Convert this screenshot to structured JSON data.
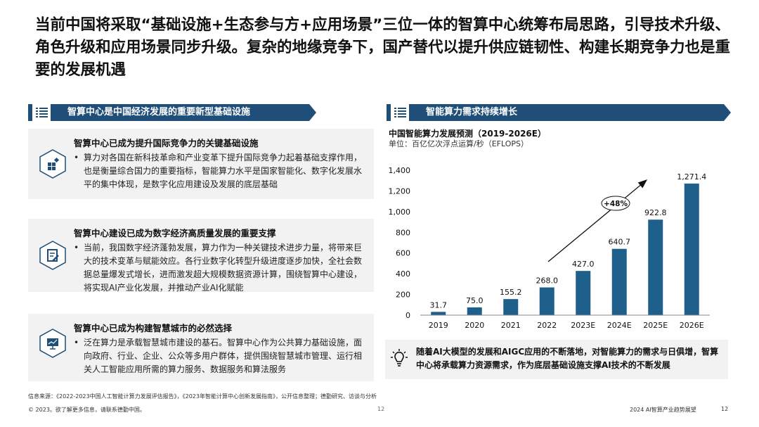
{
  "headline": "当前中国将采取“基础设施+生态参与方+应用场景”三位一体的智算中心统筹布局思路，引导技术升级、角色升级和应用场景同步升级。复杂的地缘竞争下，国产替代以提升供应链韧性、构建长期竞争力也是重要的发展机遇",
  "left_section": {
    "title": "智算中心是中国经济发展的重要新型基础设施",
    "cards": [
      {
        "icon": "grid-blocks-icon",
        "title": "智算中心已成为提升国际竞争力的关键基础设施",
        "bullet": "算力对各国在新科技革命和产业变革下提升国际竞争力起着基础支撑作用，也是衡量综合国力的重要指标，智能算力水平是国家智能化、数字化发展水平的集中体现，是数字化应用建设及发展的底层基础"
      },
      {
        "icon": "document-edit-icon",
        "title": "智算中心建设已成为数字经济高质量发展的重要支撑",
        "bullet": "当前，我国数字经济蓬勃发展，算力作为一种关键技术进步力量，将带来巨大的技术变革与赋能效应。各行业数字化转型升级进度逐步加快，全社会数据总量爆发式增长，进而激发超大规模数据资源计算，围绕智算中心建设，将实现AI产业化发展，并推动产业AI化赋能"
      },
      {
        "icon": "presentation-screen-icon",
        "title": "智算中心已成为构建智慧城市的必然选择",
        "bullet": "泛在算力是承载智慧城市建设的基石。智算中心作为公共算力基础设施，面向政府、行业、企业、公众等多用户群体，提供围绕智慧城市管理、运行相关人工智能应用所需的算力服务、数据服务和算法服务"
      }
    ]
  },
  "right_section": {
    "title": "智能算力需求持续增长",
    "chart_title": "中国智能算力发展预测（2019-2026E）",
    "chart_unit": "单位：百亿亿次浮点运算/秒（EFLOPS）",
    "insight": "随着AI大模型的发展和AIGC应用的不断落地，对智能算力的需求与日俱增，智算中心将承载算力资源需求，作为底层基础设施支撑AI技术的不断发展"
  },
  "chart_data": {
    "type": "bar",
    "title": "中国智能算力发展预测（2019-2026E）",
    "ylabel": "单位：百亿亿次浮点运算/秒（EFLOPS）",
    "categories": [
      "2019",
      "2020",
      "2021",
      "2022",
      "2023E",
      "2024E",
      "2025E",
      "2026E"
    ],
    "values": [
      31.7,
      75.0,
      155.2,
      268.0,
      427.0,
      640.7,
      922.8,
      1271.4
    ],
    "value_labels": [
      "31.7",
      "75.0",
      "155.2",
      "268.0",
      "427.0",
      "640.7",
      "922.8",
      "1,271.4"
    ],
    "ylim": [
      0,
      1400
    ],
    "yticks": [
      0,
      200,
      400,
      600,
      800,
      1000,
      1200,
      1400
    ],
    "ytick_labels": [
      "0",
      "200",
      "400",
      "600",
      "800",
      "1,000",
      "1,200",
      "1,400"
    ],
    "annotation": "+48%",
    "grid": false,
    "bar_color": "#1f5f8b"
  },
  "colors": {
    "section_bar": "#1f4e79",
    "card_bg": "#f2f2f2",
    "bar": "#1f5f8b"
  },
  "source": "信息来源：《2022-2023中国人工智能计算力发展评估报告》，《2023年智能计算中心创新发展指南》，公开信息整理；德勤研究、访谈与分析",
  "footer": {
    "copyright": "© 2023。欲了解更多信息，请联系德勤中国。",
    "page_center": "12",
    "report_title": "2024 AI智算产业趋势展望",
    "page_right": "12"
  }
}
